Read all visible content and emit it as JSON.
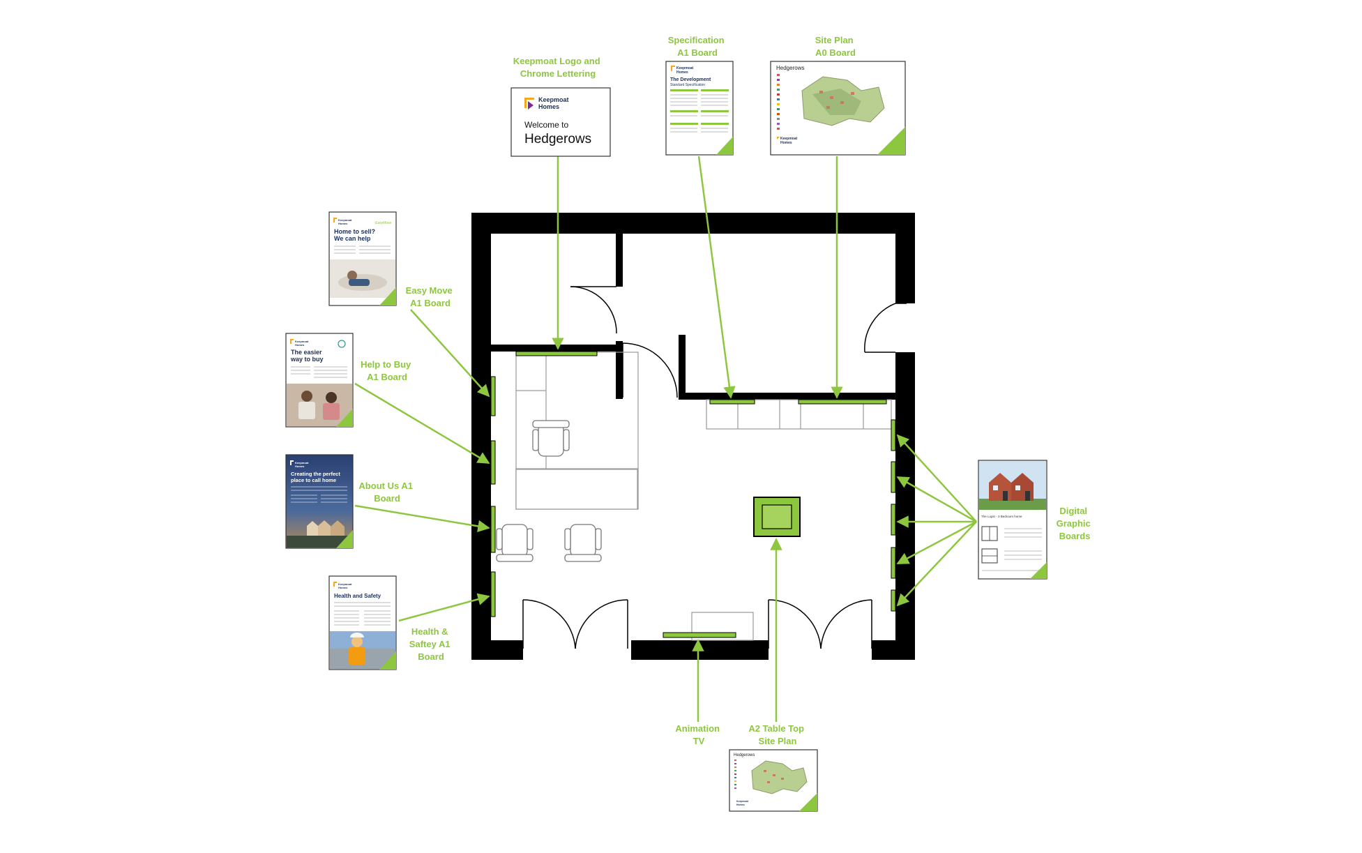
{
  "colors": {
    "accent": "#8dc63f",
    "wall": "#000000",
    "navy": "#1a2f5c",
    "fixture_stroke": "#9a9a9a"
  },
  "callouts": {
    "logo": [
      "Keepmoat Logo and",
      "Chrome Lettering"
    ],
    "spec": [
      "Specification",
      "A1 Board"
    ],
    "siteplan": [
      "Site Plan",
      "A0 Board"
    ],
    "easymove": [
      "Easy Move",
      "A1 Board"
    ],
    "helptobuy": [
      "Help to Buy",
      "A1 Board"
    ],
    "aboutus": [
      "About Us A1",
      "Board"
    ],
    "health": [
      "Health &",
      "Saftey A1",
      "Board"
    ],
    "digital": [
      "Digital",
      "Graphic",
      "Boards"
    ],
    "animation": [
      "Animation",
      "TV"
    ],
    "tabletop": [
      "A2 Table Top",
      "Site Plan"
    ]
  },
  "boards": {
    "logo": {
      "brand_line1": "Keepmoat",
      "brand_line2": "Homes",
      "welcome": "Welcome to",
      "name": "Hedgerows"
    },
    "spec": {
      "brand_line1": "Keepmoat",
      "brand_line2": "Homes",
      "title": "The Development",
      "subtitle": "Standard Specification"
    },
    "siteplan": {
      "title": "Hedgerows",
      "brand_line1": "Keepmoat",
      "brand_line2": "Homes"
    },
    "easymove": {
      "brand_line1": "Keepmoat",
      "brand_line2": "Homes",
      "tag": "EasyMove",
      "headline1": "Home to sell?",
      "headline2": "We can help"
    },
    "helptobuy": {
      "brand_line1": "Keepmoat",
      "brand_line2": "Homes",
      "headline1": "The easier",
      "headline2": "way to buy"
    },
    "aboutus": {
      "brand_line1": "Keepmoat",
      "brand_line2": "Homes",
      "headline1": "Creating the perfect",
      "headline2": "place to call home"
    },
    "health": {
      "brand_line1": "Keepmoat",
      "brand_line2": "Homes",
      "headline": "Health and Safety"
    },
    "digital": {
      "caption": "The Lupin - 3 Bedroom home"
    },
    "tabletop": {
      "title": "Hedgerows",
      "brand_line1": "Keepmoat",
      "brand_line2": "Homes"
    }
  }
}
